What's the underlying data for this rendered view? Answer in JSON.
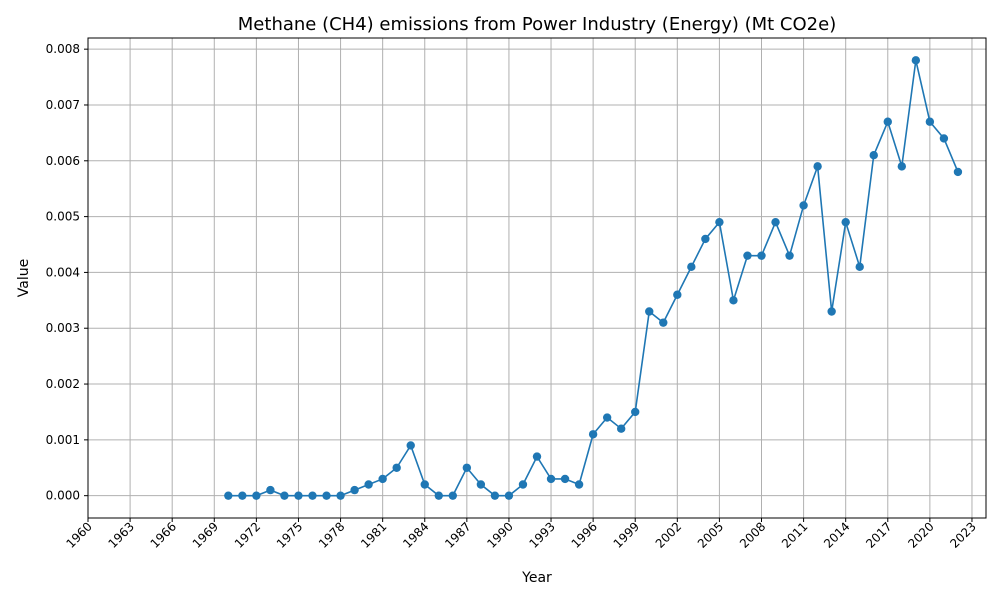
{
  "chart_data": {
    "type": "line",
    "title": "Methane (CH4) emissions from Power Industry (Energy) (Mt CO2e)",
    "xlabel": "Year",
    "ylabel": "Value",
    "xlim": [
      1960,
      2024
    ],
    "ylim": [
      -0.0004,
      0.0082
    ],
    "x_ticks": [
      1960,
      1963,
      1966,
      1969,
      1972,
      1975,
      1978,
      1981,
      1984,
      1987,
      1990,
      1993,
      1996,
      1999,
      2002,
      2005,
      2008,
      2011,
      2014,
      2017,
      2020,
      2023
    ],
    "y_ticks": [
      0.0,
      0.001,
      0.002,
      0.003,
      0.004,
      0.005,
      0.006,
      0.007,
      0.008
    ],
    "y_tick_labels": [
      "0.000",
      "0.001",
      "0.002",
      "0.003",
      "0.004",
      "0.005",
      "0.006",
      "0.007",
      "0.008"
    ],
    "grid": true,
    "marker": "circle",
    "color": "#1f77b4",
    "series": [
      {
        "x": [
          1970,
          1971,
          1972,
          1973,
          1974,
          1975,
          1976,
          1977,
          1978,
          1979,
          1980,
          1981,
          1982,
          1983,
          1984,
          1985,
          1986,
          1987,
          1988,
          1989,
          1990,
          1991,
          1992,
          1993,
          1994,
          1995,
          1996,
          1997,
          1998,
          1999,
          2000,
          2001,
          2002,
          2003,
          2004,
          2005,
          2006,
          2007,
          2008,
          2009,
          2010,
          2011,
          2012,
          2013,
          2014,
          2015,
          2016,
          2017,
          2018,
          2019,
          2020,
          2021,
          2022
        ],
        "values": [
          0.0,
          0.0,
          0.0,
          0.0001,
          0.0,
          0.0,
          0.0,
          0.0,
          0.0,
          0.0001,
          0.0002,
          0.0003,
          0.0005,
          0.0009,
          0.0002,
          0.0,
          0.0,
          0.0005,
          0.0002,
          0.0,
          0.0,
          0.0002,
          0.0007,
          0.0003,
          0.0003,
          0.0002,
          0.0011,
          0.0014,
          0.0012,
          0.0015,
          0.0033,
          0.0031,
          0.0036,
          0.0041,
          0.0046,
          0.0049,
          0.0035,
          0.0043,
          0.0043,
          0.0049,
          0.0043,
          0.0052,
          0.0059,
          0.0033,
          0.0049,
          0.0041,
          0.0061,
          0.0067,
          0.0059,
          0.0078,
          0.0067,
          0.0064,
          0.0058
        ]
      }
    ]
  }
}
